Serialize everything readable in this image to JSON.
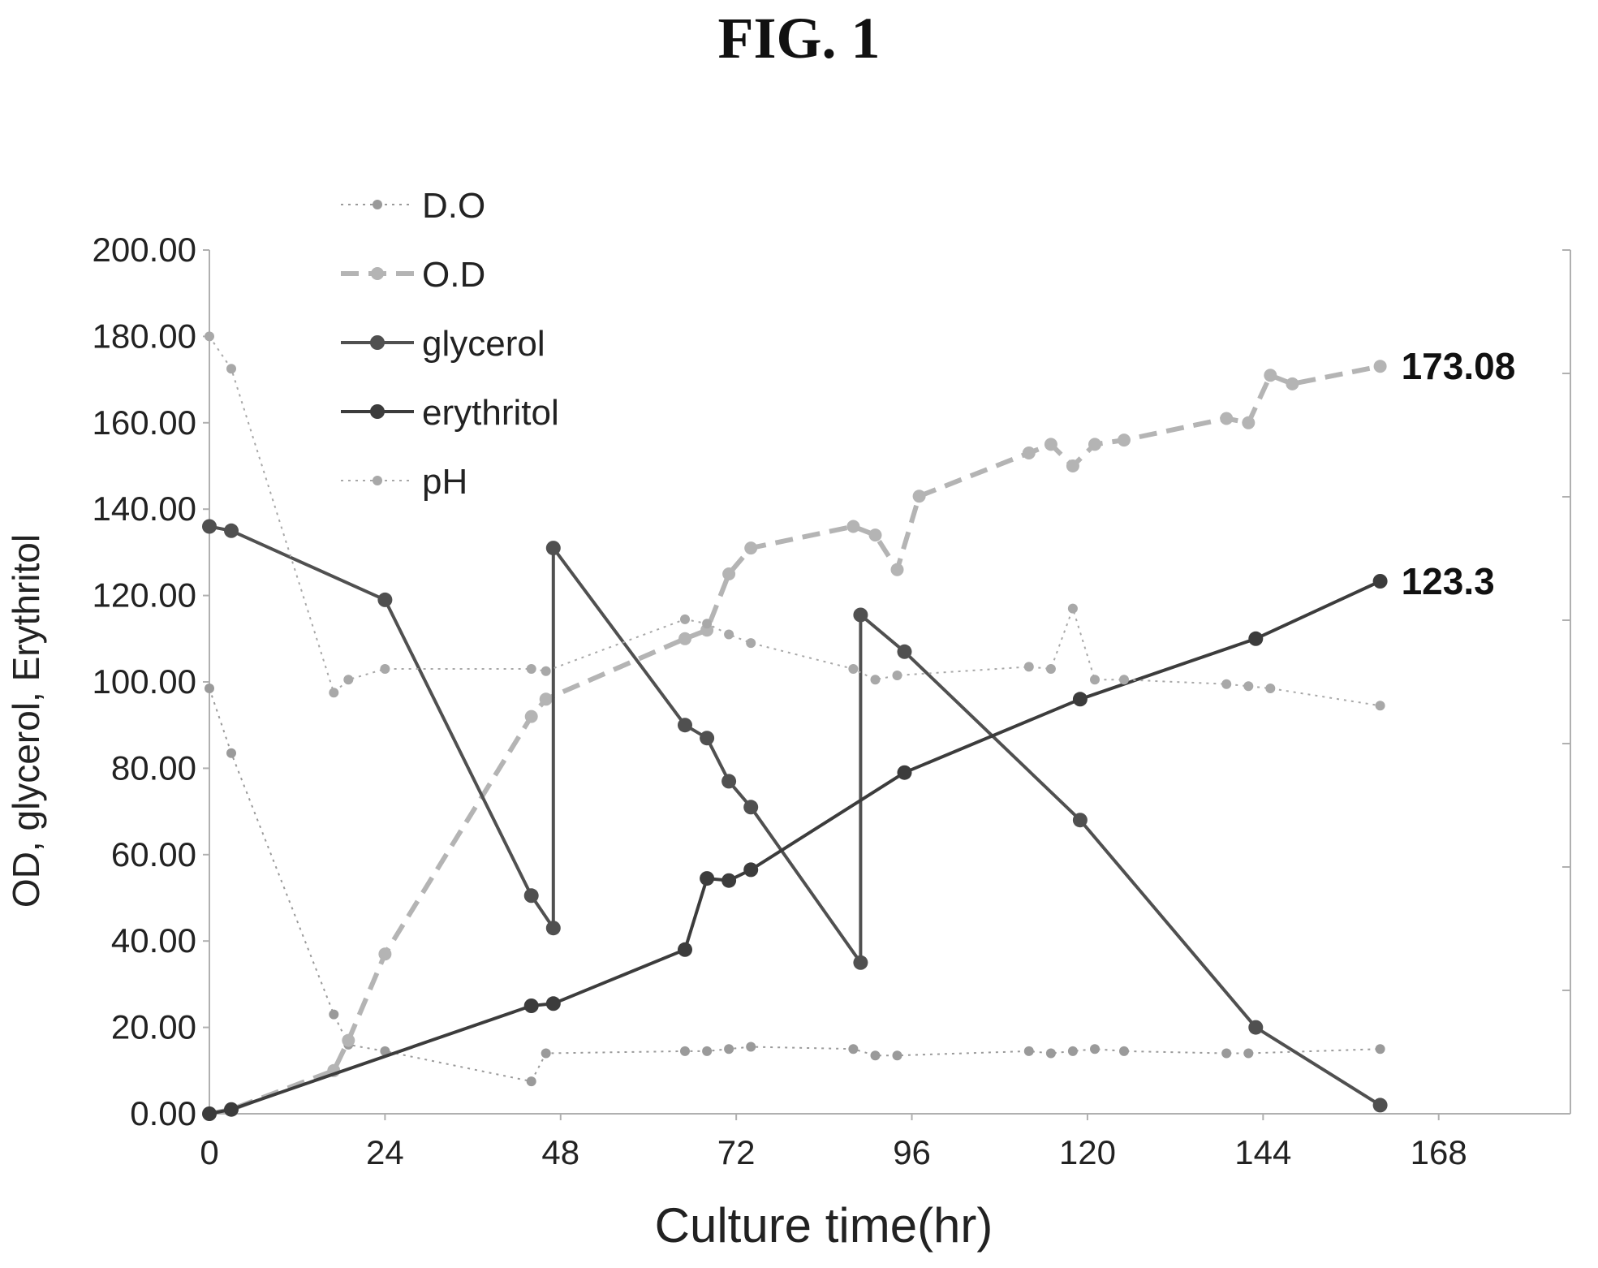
{
  "figure_title": "FIG. 1",
  "colors": {
    "do": "#9a9a9a",
    "od": "#b4b4b4",
    "glycerol": "#505050",
    "erythritol": "#3c3c3c",
    "ph": "#a8a8a8",
    "axis": "#b0b0b0"
  },
  "chart_data": {
    "type": "line",
    "xlabel": "Culture time(hr)",
    "ylabel": "OD, glycerol, Erythritol",
    "xlim": [
      0,
      186
    ],
    "ylim": [
      0,
      200
    ],
    "xticks": [
      "0",
      "24",
      "48",
      "72",
      "96",
      "120",
      "144",
      "168"
    ],
    "yticks": [
      "0.00",
      "20.00",
      "40.00",
      "60.00",
      "80.00",
      "100.00",
      "120.00",
      "140.00",
      "160.00",
      "180.00",
      "200.00"
    ],
    "legend_position": "top-left",
    "grid": false,
    "series": [
      {
        "name": "D.O",
        "style": "dotted",
        "x": [
          0,
          3,
          17,
          19,
          24,
          44,
          46,
          65,
          68,
          71,
          74,
          88,
          91,
          94,
          112,
          115,
          118,
          121,
          125,
          139,
          142,
          160
        ],
        "y": [
          98.5,
          83.5,
          23,
          16,
          14.5,
          7.5,
          14,
          14.5,
          14.5,
          15,
          15.5,
          15,
          13.5,
          13.5,
          14.5,
          14,
          14.5,
          15,
          14.5,
          14,
          14,
          15
        ]
      },
      {
        "name": "O.D",
        "style": "dashed",
        "x": [
          0,
          3,
          17,
          19,
          24,
          44,
          46,
          65,
          68,
          71,
          74,
          88,
          91,
          94,
          97,
          112,
          115,
          118,
          121,
          125,
          139,
          142,
          145,
          148,
          160
        ],
        "y": [
          0,
          1,
          10,
          17,
          37,
          92,
          96,
          110,
          112,
          125,
          131,
          136,
          134,
          126,
          143,
          153,
          155,
          150,
          155,
          156,
          161,
          160,
          171,
          169,
          173.08
        ]
      },
      {
        "name": "glycerol",
        "style": "solid",
        "x": [
          0,
          3,
          24,
          44,
          47,
          47,
          65,
          68,
          71,
          74,
          89,
          89,
          95,
          119,
          143,
          160
        ],
        "y": [
          136,
          135,
          119,
          50.5,
          43,
          131,
          90,
          87,
          77,
          71,
          35,
          115.5,
          107,
          68,
          20,
          2
        ]
      },
      {
        "name": "erythritol",
        "style": "solid",
        "x": [
          0,
          3,
          44,
          47,
          65,
          68,
          71,
          74,
          95,
          119,
          143,
          160
        ],
        "y": [
          0,
          1,
          25,
          25.5,
          38,
          54.5,
          54,
          56.5,
          79,
          96,
          110,
          123.3
        ]
      },
      {
        "name": "pH",
        "style": "dotted",
        "x": [
          0,
          3,
          17,
          19,
          24,
          44,
          46,
          65,
          68,
          71,
          74,
          88,
          91,
          94,
          112,
          115,
          118,
          121,
          125,
          139,
          142,
          145,
          160
        ],
        "y": [
          180,
          172.5,
          97.5,
          100.5,
          103,
          103,
          102.5,
          114.5,
          113.5,
          111,
          109,
          103,
          100.5,
          101.5,
          103.5,
          103,
          117,
          100.5,
          100.5,
          99.5,
          99,
          98.5,
          94.5
        ]
      }
    ],
    "annotations": [
      {
        "text": "173.08",
        "x": 160,
        "y": 173.08
      },
      {
        "text": "123.3",
        "x": 160,
        "y": 123.3
      }
    ]
  }
}
